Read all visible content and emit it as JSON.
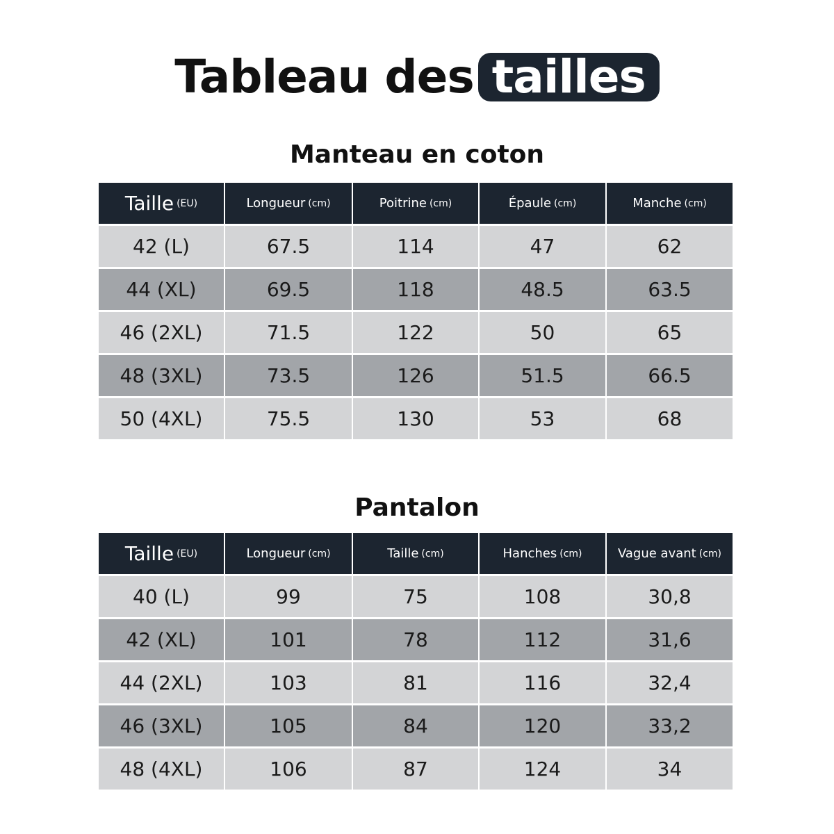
{
  "title": {
    "main": "Tableau des",
    "highlight": "tailles"
  },
  "colors": {
    "header": "#1c2530",
    "row_light": "#d3d4d6",
    "row_dark": "#a2a5a9"
  },
  "tables": [
    {
      "title": "Manteau en coton",
      "headers": [
        {
          "label": "Taille",
          "unit": "(EU)"
        },
        {
          "label": "Longueur",
          "unit": "(cm)"
        },
        {
          "label": "Poitrine",
          "unit": "(cm)"
        },
        {
          "label": "Épaule",
          "unit": "(cm)"
        },
        {
          "label": "Manche",
          "unit": "(cm)"
        }
      ],
      "rows": [
        [
          "42 (L)",
          "67.5",
          "114",
          "47",
          "62"
        ],
        [
          "44 (XL)",
          "69.5",
          "118",
          "48.5",
          "63.5"
        ],
        [
          "46 (2XL)",
          "71.5",
          "122",
          "50",
          "65"
        ],
        [
          "48 (3XL)",
          "73.5",
          "126",
          "51.5",
          "66.5"
        ],
        [
          "50 (4XL)",
          "75.5",
          "130",
          "53",
          "68"
        ]
      ]
    },
    {
      "title": "Pantalon",
      "headers": [
        {
          "label": "Taille",
          "unit": "(EU)"
        },
        {
          "label": "Longueur",
          "unit": "(cm)"
        },
        {
          "label": "Taille",
          "unit": "(cm)"
        },
        {
          "label": "Hanches",
          "unit": "(cm)"
        },
        {
          "label": "Vague avant",
          "unit": "(cm)"
        }
      ],
      "rows": [
        [
          "40 (L)",
          "99",
          "75",
          "108",
          "30,8"
        ],
        [
          "42 (XL)",
          "101",
          "78",
          "112",
          "31,6"
        ],
        [
          "44 (2XL)",
          "103",
          "81",
          "116",
          "32,4"
        ],
        [
          "46 (3XL)",
          "105",
          "84",
          "120",
          "33,2"
        ],
        [
          "48 (4XL)",
          "106",
          "87",
          "124",
          "34"
        ]
      ]
    }
  ]
}
